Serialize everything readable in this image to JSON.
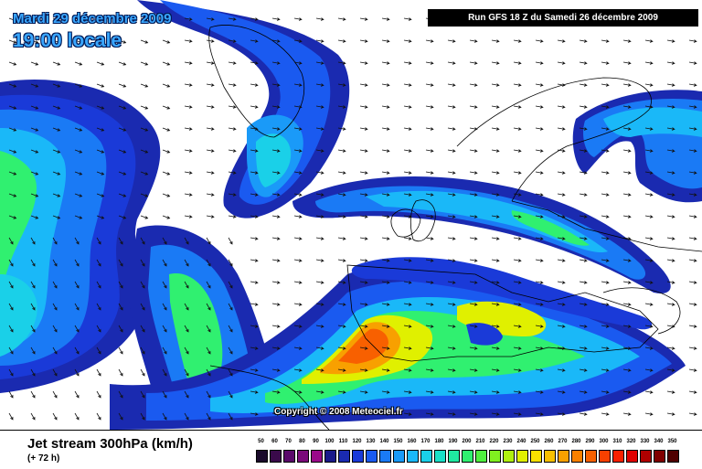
{
  "header": {
    "date": "Mardi 29 décembre 2009",
    "time": "19:00 locale",
    "run": "Run GFS 18 Z du Samedi 26 décembre 2009"
  },
  "map": {
    "credit": "Copyright © 2008 Meteociel.fr",
    "background_color": "#ffffff",
    "coastline_color": "#000000",
    "arrow_color": "#111111"
  },
  "footer": {
    "product_title": "Jet stream 300hPa (km/h)",
    "lead_time": "(+ 72 h)"
  },
  "legend": {
    "items": [
      {
        "label": "50",
        "color": "#1a0a2a"
      },
      {
        "label": "60",
        "color": "#3a0a4a"
      },
      {
        "label": "70",
        "color": "#5a0a6a"
      },
      {
        "label": "80",
        "color": "#7a0a7a"
      },
      {
        "label": "90",
        "color": "#9a0a8a"
      },
      {
        "label": "100",
        "color": "#1a1a8a"
      },
      {
        "label": "110",
        "color": "#1a2ab0"
      },
      {
        "label": "120",
        "color": "#1a3ad8"
      },
      {
        "label": "130",
        "color": "#1a5af0"
      },
      {
        "label": "140",
        "color": "#1a7af5"
      },
      {
        "label": "150",
        "color": "#1a9af8"
      },
      {
        "label": "160",
        "color": "#1ab8f8"
      },
      {
        "label": "170",
        "color": "#1ad0e8"
      },
      {
        "label": "180",
        "color": "#1ae0c8"
      },
      {
        "label": "190",
        "color": "#20e8a0"
      },
      {
        "label": "200",
        "color": "#30f070"
      },
      {
        "label": "210",
        "color": "#50f040"
      },
      {
        "label": "220",
        "color": "#80f020"
      },
      {
        "label": "230",
        "color": "#b0f010"
      },
      {
        "label": "240",
        "color": "#e0f000"
      },
      {
        "label": "250",
        "color": "#f8e000"
      },
      {
        "label": "260",
        "color": "#f8c000"
      },
      {
        "label": "270",
        "color": "#f8a000"
      },
      {
        "label": "280",
        "color": "#f88000"
      },
      {
        "label": "290",
        "color": "#f86000"
      },
      {
        "label": "300",
        "color": "#f84000"
      },
      {
        "label": "310",
        "color": "#f82000"
      },
      {
        "label": "320",
        "color": "#e00000"
      },
      {
        "label": "330",
        "color": "#b00000"
      },
      {
        "label": "340",
        "color": "#800000"
      },
      {
        "label": "350",
        "color": "#500000"
      }
    ]
  }
}
